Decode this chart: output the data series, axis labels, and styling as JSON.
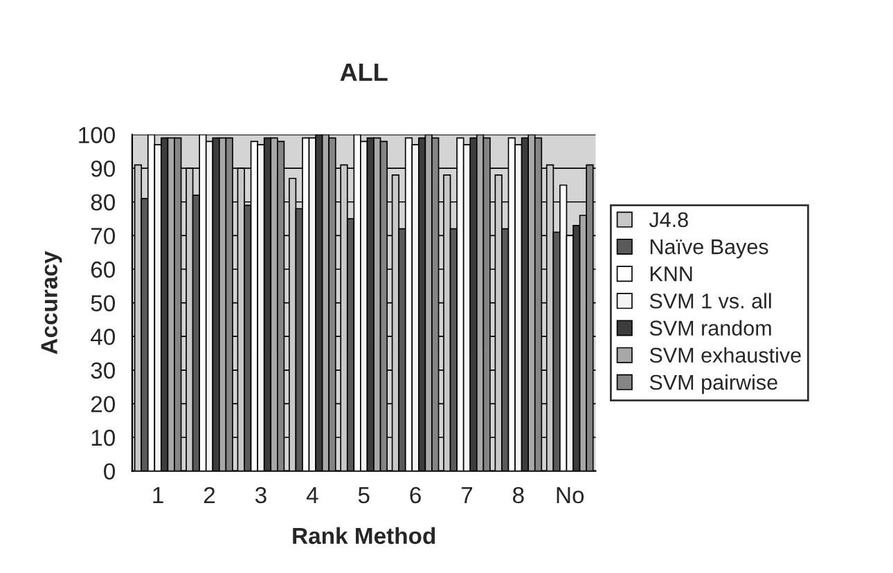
{
  "chart_data": {
    "type": "bar",
    "title": "ALL",
    "xlabel": "Rank Method",
    "ylabel": "Accuracy",
    "categories": [
      "1",
      "2",
      "3",
      "4",
      "5",
      "6",
      "7",
      "8",
      "No"
    ],
    "series": [
      {
        "name": "J4.8",
        "color": "#c8c8c8",
        "values": [
          91,
          90,
          90,
          87,
          91,
          88,
          88,
          88,
          91
        ]
      },
      {
        "name": "Naïve Bayes",
        "color": "#5a5a5a",
        "values": [
          81,
          82,
          79,
          78,
          75,
          72,
          72,
          72,
          71
        ]
      },
      {
        "name": "KNN",
        "color": "#ffffff",
        "values": [
          100,
          100,
          98,
          99,
          100,
          99,
          99,
          99,
          85
        ]
      },
      {
        "name": "SVM 1 vs. all",
        "color": "#f4f4f4",
        "values": [
          97,
          98,
          97,
          99,
          98,
          97,
          97,
          97,
          70
        ]
      },
      {
        "name": "SVM random",
        "color": "#3c3c3c",
        "values": [
          99,
          99,
          99,
          100,
          99,
          99,
          99,
          99,
          73
        ]
      },
      {
        "name": "SVM exhaustive",
        "color": "#a8a8a8",
        "values": [
          99,
          99,
          99,
          100,
          99,
          100,
          100,
          100,
          76
        ]
      },
      {
        "name": "SVM pairwise",
        "color": "#858585",
        "values": [
          99,
          99,
          98,
          99,
          98,
          99,
          99,
          99,
          91
        ]
      }
    ],
    "ylim": [
      0,
      100
    ],
    "yticks": [
      0,
      10,
      20,
      30,
      40,
      50,
      60,
      70,
      80,
      90,
      100
    ],
    "grid": "y",
    "legend": "right"
  }
}
